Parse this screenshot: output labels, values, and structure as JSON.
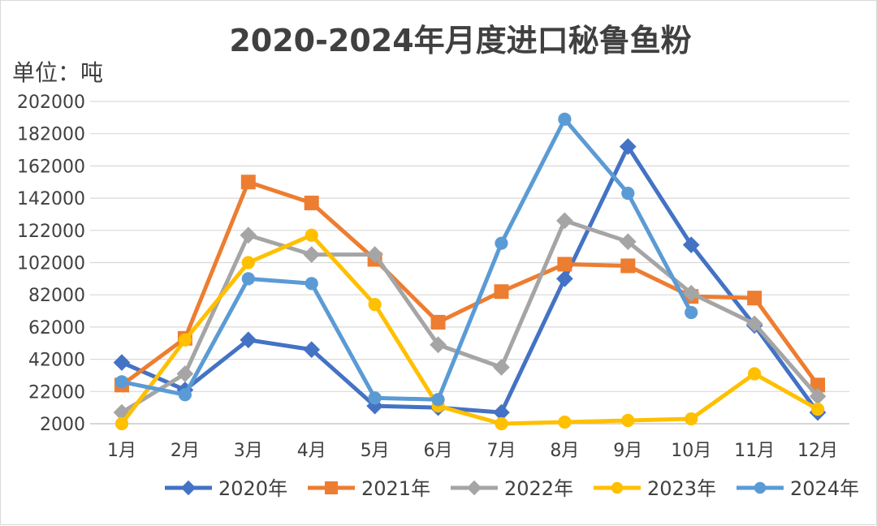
{
  "chart_data": {
    "type": "line",
    "title": "2020-2024年月度进口秘鲁鱼粉",
    "unit_label": "单位：吨",
    "categories": [
      "1月",
      "2月",
      "3月",
      "4月",
      "5月",
      "6月",
      "7月",
      "8月",
      "9月",
      "10月",
      "11月",
      "12月"
    ],
    "ylim": [
      2000,
      202000
    ],
    "yticks": [
      2000,
      22000,
      42000,
      62000,
      82000,
      102000,
      122000,
      142000,
      162000,
      182000,
      202000
    ],
    "grid": true,
    "legend_position": "bottom",
    "series": [
      {
        "name": "2020年",
        "color": "#4472C4",
        "marker": "diamond",
        "values": [
          40000,
          23000,
          54000,
          48000,
          13000,
          12000,
          9000,
          92000,
          174000,
          113000,
          63000,
          9000
        ]
      },
      {
        "name": "2021年",
        "color": "#ED7D31",
        "marker": "square",
        "values": [
          26000,
          55000,
          152000,
          139000,
          104000,
          65000,
          84000,
          101000,
          100000,
          81000,
          80000,
          26000
        ]
      },
      {
        "name": "2022年",
        "color": "#A5A5A5",
        "marker": "diamond",
        "values": [
          9000,
          33000,
          119000,
          107000,
          107000,
          51000,
          37000,
          128000,
          115000,
          83000,
          64000,
          19000
        ]
      },
      {
        "name": "2023年",
        "color": "#FFC000",
        "marker": "circle",
        "values": [
          2000,
          54000,
          102000,
          119000,
          76000,
          13000,
          2000,
          3000,
          4000,
          5000,
          33000,
          11000
        ]
      },
      {
        "name": "2024年",
        "color": "#5B9BD5",
        "marker": "circle",
        "values": [
          28000,
          20000,
          92000,
          89000,
          18000,
          17000,
          114000,
          191000,
          145000,
          71000,
          null,
          null
        ]
      }
    ]
  }
}
